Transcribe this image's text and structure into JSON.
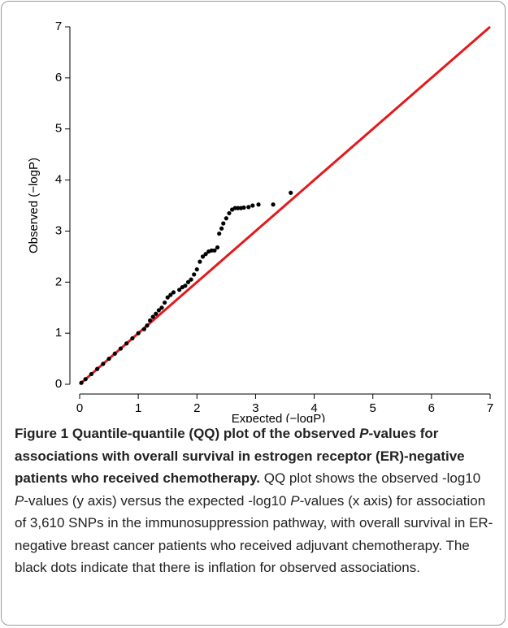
{
  "chart_data": {
    "type": "scatter",
    "x_label": "Expected (−logP)",
    "y_label": "Observed (−logP)",
    "xlim": [
      0,
      7
    ],
    "ylim": [
      0,
      7
    ],
    "xticks": [
      0,
      1,
      2,
      3,
      4,
      5,
      6,
      7
    ],
    "yticks": [
      0,
      1,
      2,
      3,
      4,
      5,
      6,
      7
    ],
    "color": "#000000",
    "reference_line_color": "#e31a1c",
    "x": [
      0.03,
      0.1,
      0.2,
      0.3,
      0.4,
      0.5,
      0.6,
      0.7,
      0.8,
      0.9,
      1.0,
      1.1,
      1.15,
      1.2,
      1.25,
      1.3,
      1.35,
      1.4,
      1.45,
      1.5,
      1.55,
      1.6,
      1.7,
      1.75,
      1.8,
      1.85,
      1.9,
      1.95,
      2.0,
      2.05,
      2.1,
      2.15,
      2.2,
      2.25,
      2.3,
      2.35,
      2.38,
      2.42,
      2.45,
      2.5,
      2.55,
      2.6,
      2.65,
      2.7,
      2.75,
      2.8,
      2.88,
      2.95,
      3.05,
      3.3,
      3.6
    ],
    "values": [
      0.03,
      0.1,
      0.2,
      0.3,
      0.4,
      0.5,
      0.6,
      0.7,
      0.8,
      0.9,
      1.0,
      1.08,
      1.15,
      1.25,
      1.32,
      1.38,
      1.45,
      1.5,
      1.6,
      1.7,
      1.75,
      1.8,
      1.85,
      1.9,
      1.93,
      2.0,
      2.05,
      2.15,
      2.25,
      2.4,
      2.5,
      2.55,
      2.6,
      2.62,
      2.62,
      2.68,
      2.95,
      3.05,
      3.15,
      3.25,
      3.35,
      3.42,
      3.45,
      3.45,
      3.45,
      3.46,
      3.47,
      3.5,
      3.52,
      3.52,
      3.75
    ]
  },
  "caption": {
    "segments": [
      {
        "text": "Figure 1 Quantile-quantile (QQ) plot of the observed ",
        "style": "bold"
      },
      {
        "text": "P",
        "style": "bold-italic"
      },
      {
        "text": "-values for associations with overall survival in estrogen receptor (ER)-negative patients who received chemotherapy.",
        "style": "bold"
      },
      {
        "text": " QQ plot shows the observed -log10 ",
        "style": "normal"
      },
      {
        "text": "P",
        "style": "italic"
      },
      {
        "text": "-values (y axis) versus the expected -log10 ",
        "style": "normal"
      },
      {
        "text": "P",
        "style": "italic"
      },
      {
        "text": "-values (x axis) for association of 3,610 SNPs in the immunosuppression pathway, with overall survival in ER-negative breast cancer patients who received adjuvant chemotherapy. The black dots indicate that there is inflation for observed associations.",
        "style": "normal"
      }
    ]
  }
}
